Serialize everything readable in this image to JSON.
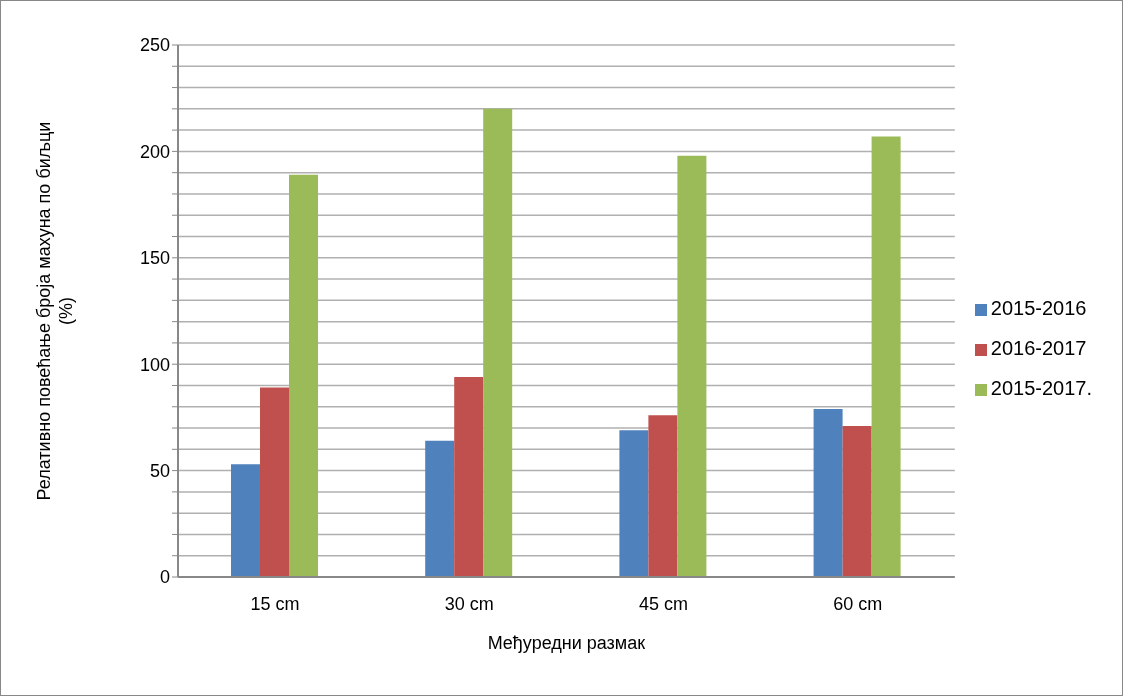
{
  "chart_data": {
    "type": "bar",
    "xlabel": "Међуредни размак",
    "ylabel": "Релативно повећање броја махуна по биљци (%)",
    "categories": [
      "15 cm",
      "30 cm",
      "45 cm",
      "60 cm"
    ],
    "series": [
      {
        "name": "2015-2016",
        "color": "#4f81bd",
        "values": [
          53,
          64,
          69,
          79
        ]
      },
      {
        "name": "2016-2017",
        "color": "#c0504d",
        "values": [
          89,
          94,
          76,
          71
        ]
      },
      {
        "name": "2015-2017.",
        "color": "#9bbb59",
        "values": [
          189,
          220,
          198,
          207
        ]
      }
    ],
    "ylim": [
      0,
      250
    ],
    "yticks": [
      0,
      {
        "value": 10,
        "label": null
      },
      {
        "value": 20,
        "label": null
      },
      {
        "value": 30,
        "label": null
      },
      {
        "value": 40,
        "label": null
      },
      50,
      {
        "value": 60,
        "label": null
      },
      {
        "value": 70,
        "label": null
      },
      {
        "value": 80,
        "label": null
      },
      {
        "value": 90,
        "label": null
      },
      100,
      {
        "value": 110,
        "label": null
      },
      {
        "value": 120,
        "label": null
      },
      {
        "value": 130,
        "label": null
      },
      {
        "value": 140,
        "label": null
      },
      150,
      {
        "value": 160,
        "label": null
      },
      {
        "value": 170,
        "label": null
      },
      {
        "value": 180,
        "label": null
      },
      {
        "value": 190,
        "label": null
      },
      200,
      {
        "value": 210,
        "label": null
      },
      {
        "value": 220,
        "label": null
      },
      {
        "value": 230,
        "label": null
      },
      {
        "value": 240,
        "label": null
      },
      250
    ],
    "grid": "y",
    "legend": "right"
  }
}
